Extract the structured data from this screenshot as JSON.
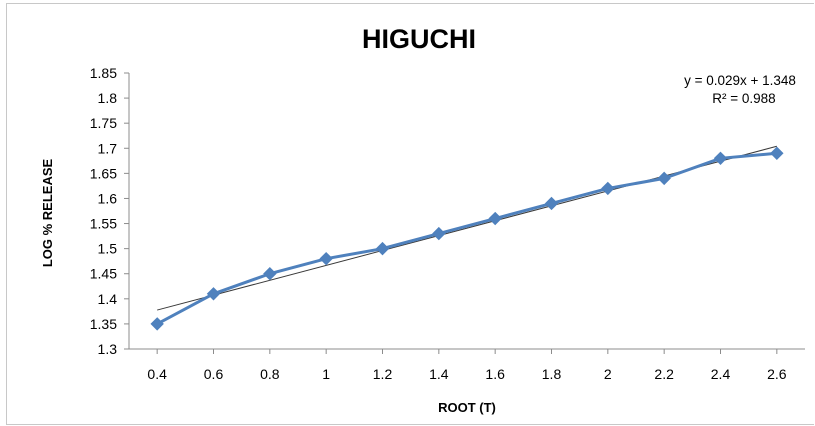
{
  "chart_data": {
    "type": "line",
    "title": "HIGUCHI",
    "xlabel": "ROOT (T)",
    "ylabel": "LOG % RELEASE",
    "x_ticks": [
      "0.4",
      "0.6",
      "0.8",
      "1",
      "1.2",
      "1.4",
      "1.6",
      "1.8",
      "2",
      "2.2",
      "2.4",
      "2.6"
    ],
    "y_ticks": [
      "1.3",
      "1.35",
      "1.4",
      "1.45",
      "1.5",
      "1.55",
      "1.6",
      "1.65",
      "1.7",
      "1.75",
      "1.8",
      "1.85"
    ],
    "xlim": [
      0.3,
      2.7
    ],
    "ylim": [
      1.3,
      1.85
    ],
    "grid": false,
    "series": [
      {
        "x": [
          0.4,
          0.6,
          0.8,
          1.0,
          1.2,
          1.4,
          1.6,
          1.8,
          2.0,
          2.2,
          2.4,
          2.6
        ],
        "values": [
          1.35,
          1.41,
          1.45,
          1.48,
          1.5,
          1.53,
          1.56,
          1.59,
          1.62,
          1.64,
          1.68,
          1.69
        ],
        "color": "#4f81bd",
        "marker": "diamond"
      }
    ],
    "trendline": {
      "type": "linear",
      "x_range": [
        0.4,
        2.6
      ],
      "y_range": [
        1.3776,
        1.704
      ],
      "color": "#3a3a3a",
      "equation": "y = 0.029x + 1.348",
      "r_squared": "R² = 0.988"
    }
  }
}
